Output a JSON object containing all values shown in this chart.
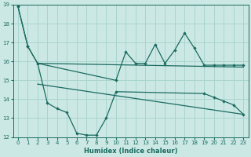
{
  "xlabel": "Humidex (Indice chaleur)",
  "bg_color": "#cce8e4",
  "grid_color": "#a8d5ce",
  "line_color": "#1a6b60",
  "xlim": [
    -0.5,
    23.5
  ],
  "ylim": [
    12,
    19
  ],
  "yticks": [
    12,
    13,
    14,
    15,
    16,
    17,
    18,
    19
  ],
  "xticks": [
    0,
    1,
    2,
    3,
    4,
    5,
    6,
    7,
    8,
    9,
    10,
    11,
    12,
    13,
    14,
    15,
    16,
    17,
    18,
    19,
    20,
    21,
    22,
    23
  ],
  "s1_x": [
    0,
    1,
    2,
    10,
    11,
    12,
    13,
    14,
    15,
    16,
    17,
    18,
    19,
    20,
    21,
    22,
    23
  ],
  "s1_y": [
    18.9,
    16.8,
    15.9,
    15.0,
    16.5,
    15.9,
    15.9,
    16.9,
    15.9,
    16.6,
    17.5,
    16.7,
    15.8,
    15.8,
    15.8,
    15.8,
    15.8
  ],
  "s2_x": [
    0,
    1,
    2,
    3,
    4,
    5,
    6,
    7,
    8,
    9,
    10,
    19,
    20,
    21,
    22,
    23
  ],
  "s2_y": [
    18.9,
    16.8,
    15.9,
    13.8,
    13.5,
    13.3,
    12.2,
    12.1,
    12.1,
    13.0,
    14.4,
    14.3,
    14.1,
    13.9,
    13.7,
    13.2
  ],
  "trend1_x": [
    2,
    23
  ],
  "trend1_y": [
    15.9,
    15.7
  ],
  "trend2_x": [
    2,
    23
  ],
  "trend2_y": [
    14.8,
    13.2
  ],
  "xlabel_fontsize": 6,
  "tick_fontsize": 5
}
